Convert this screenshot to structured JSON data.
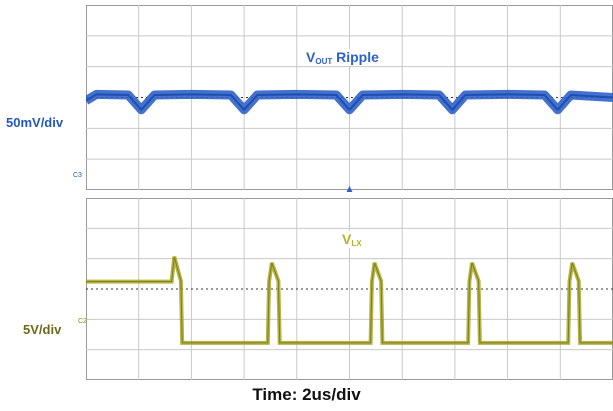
{
  "chart_data": {
    "type": "line",
    "x_label": "Time: 2us/div",
    "xlim": [
      0,
      20
    ],
    "x_unit": "us",
    "series": [
      {
        "name": "VOUT Ripple",
        "name_main": "V",
        "name_sub": "OUT",
        "name_rest": "Ripple",
        "scale_label": "50mV/div",
        "ground_marker": "C3",
        "color": "#2f62c8",
        "x": [
          0,
          0.4,
          1.6,
          2.1,
          2.6,
          4.0,
          5.5,
          6.0,
          6.5,
          8.0,
          9.5,
          10.0,
          10.5,
          12.0,
          13.4,
          13.9,
          14.4,
          16.0,
          17.4,
          17.9,
          18.4,
          20.0
        ],
        "y": [
          -5,
          5,
          4,
          -20,
          4,
          5,
          4,
          -20,
          4,
          5,
          4,
          -20,
          4,
          5,
          4,
          -20,
          4,
          5,
          4,
          -20,
          4,
          0
        ],
        "y_unit": "mV"
      },
      {
        "name": "VLX",
        "name_main": "V",
        "name_sub": "LX",
        "scale_label": "5V/div",
        "ground_marker": "C2",
        "color": "#a8a82a",
        "x": [
          0,
          3.2,
          3.25,
          3.35,
          3.6,
          3.65,
          6.9,
          6.95,
          7.05,
          7.3,
          7.35,
          10.8,
          10.85,
          10.95,
          11.2,
          11.25,
          14.5,
          14.55,
          14.65,
          14.9,
          14.95,
          18.3,
          18.35,
          18.45,
          18.7,
          18.75,
          20.0
        ],
        "y": [
          9.9,
          9.9,
          9.9,
          14,
          10,
          -0.2,
          -0.2,
          9.9,
          13,
          10,
          -0.2,
          -0.2,
          9.9,
          13,
          10,
          -0.2,
          -0.2,
          9.9,
          13,
          10,
          -0.2,
          -0.2,
          9.9,
          13,
          10,
          -0.2,
          -0.2
        ],
        "y_unit": "V"
      }
    ],
    "grid": true
  }
}
